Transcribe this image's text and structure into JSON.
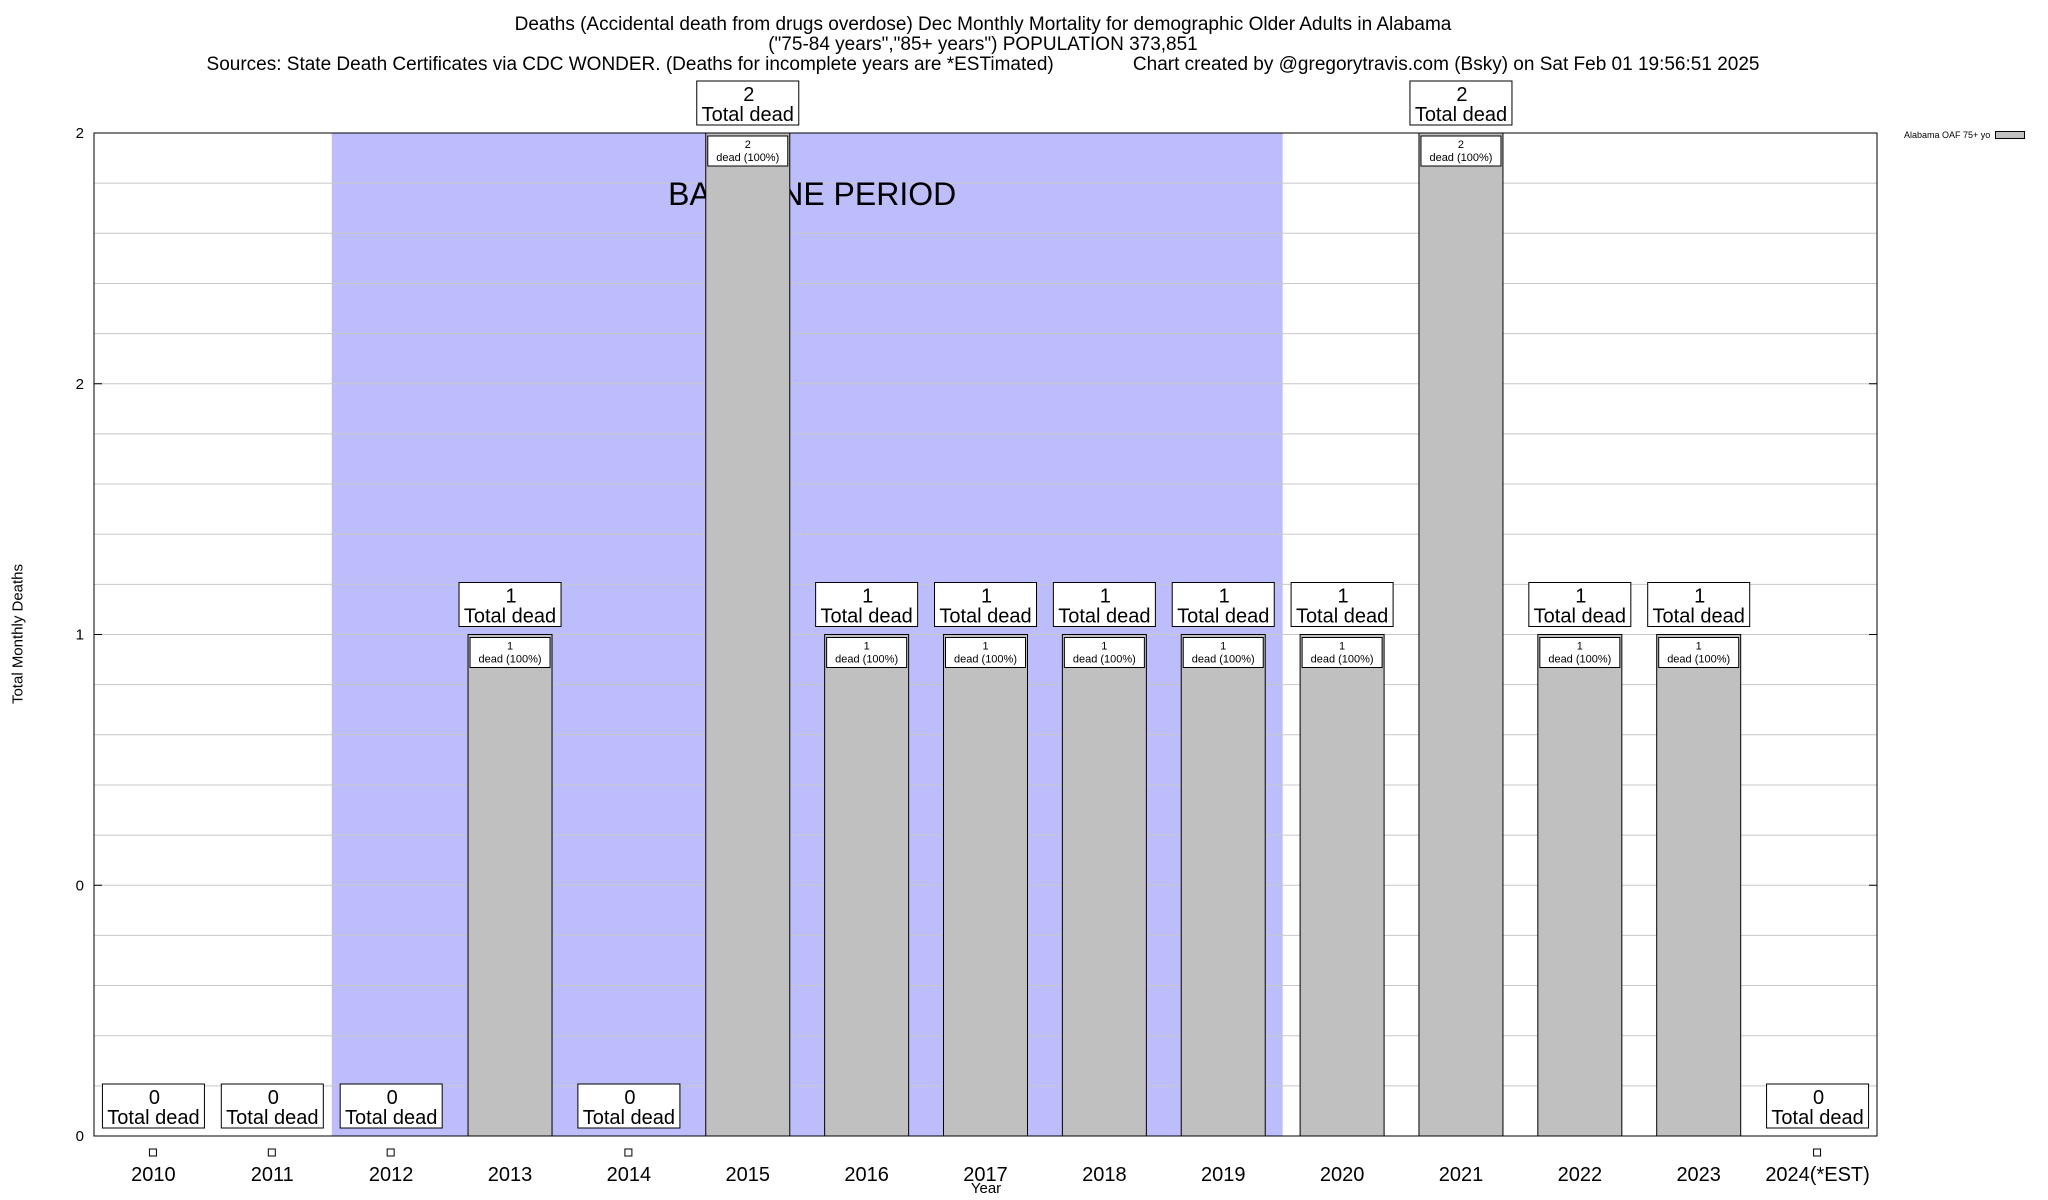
{
  "chart_data": {
    "type": "bar",
    "title_lines": [
      "Deaths (Accidental death from drugs overdose) Dec Monthly Mortality for demographic Older Adults in Alabama",
      "(\"75-84 years\",\"85+ years\") POPULATION 373,851",
      "Sources: State Death Certificates via CDC WONDER. (Deaths for incomplete years are *ESTimated)               Chart created by @gregorytravis.com (Bsky) on Sat Feb 01 19:56:51 2025"
    ],
    "xlabel": "Year",
    "ylabel": "Total Monthly Deaths",
    "categories": [
      "2010",
      "2011",
      "2012",
      "2013",
      "2014",
      "2015",
      "2016",
      "2017",
      "2018",
      "2019",
      "2020",
      "2021",
      "2022",
      "2023",
      "2024(*EST)"
    ],
    "values": [
      0,
      0,
      0,
      1,
      0,
      2,
      1,
      1,
      1,
      1,
      1,
      2,
      1,
      1,
      0
    ],
    "ylim": [
      0,
      2
    ],
    "y_tick_labels": [
      "0",
      "0",
      "1",
      "2",
      "2"
    ],
    "series": [
      {
        "name": "Alabama OAF 75+ yo",
        "values": [
          0,
          0,
          0,
          1,
          0,
          2,
          1,
          1,
          1,
          1,
          1,
          2,
          1,
          1,
          0
        ]
      }
    ],
    "total_label_suffix": "Total dead",
    "bar_label_suffix": "dead (100%)",
    "baseline": {
      "label": "BASELINE PERIOD",
      "start_category": "2012",
      "end_category": "2019"
    },
    "legend_position": "top-right",
    "grid": true,
    "colors": {
      "bar": "#c0c0c0",
      "baseline": "#bdbdfc",
      "grid": "#c8c8c8"
    }
  }
}
